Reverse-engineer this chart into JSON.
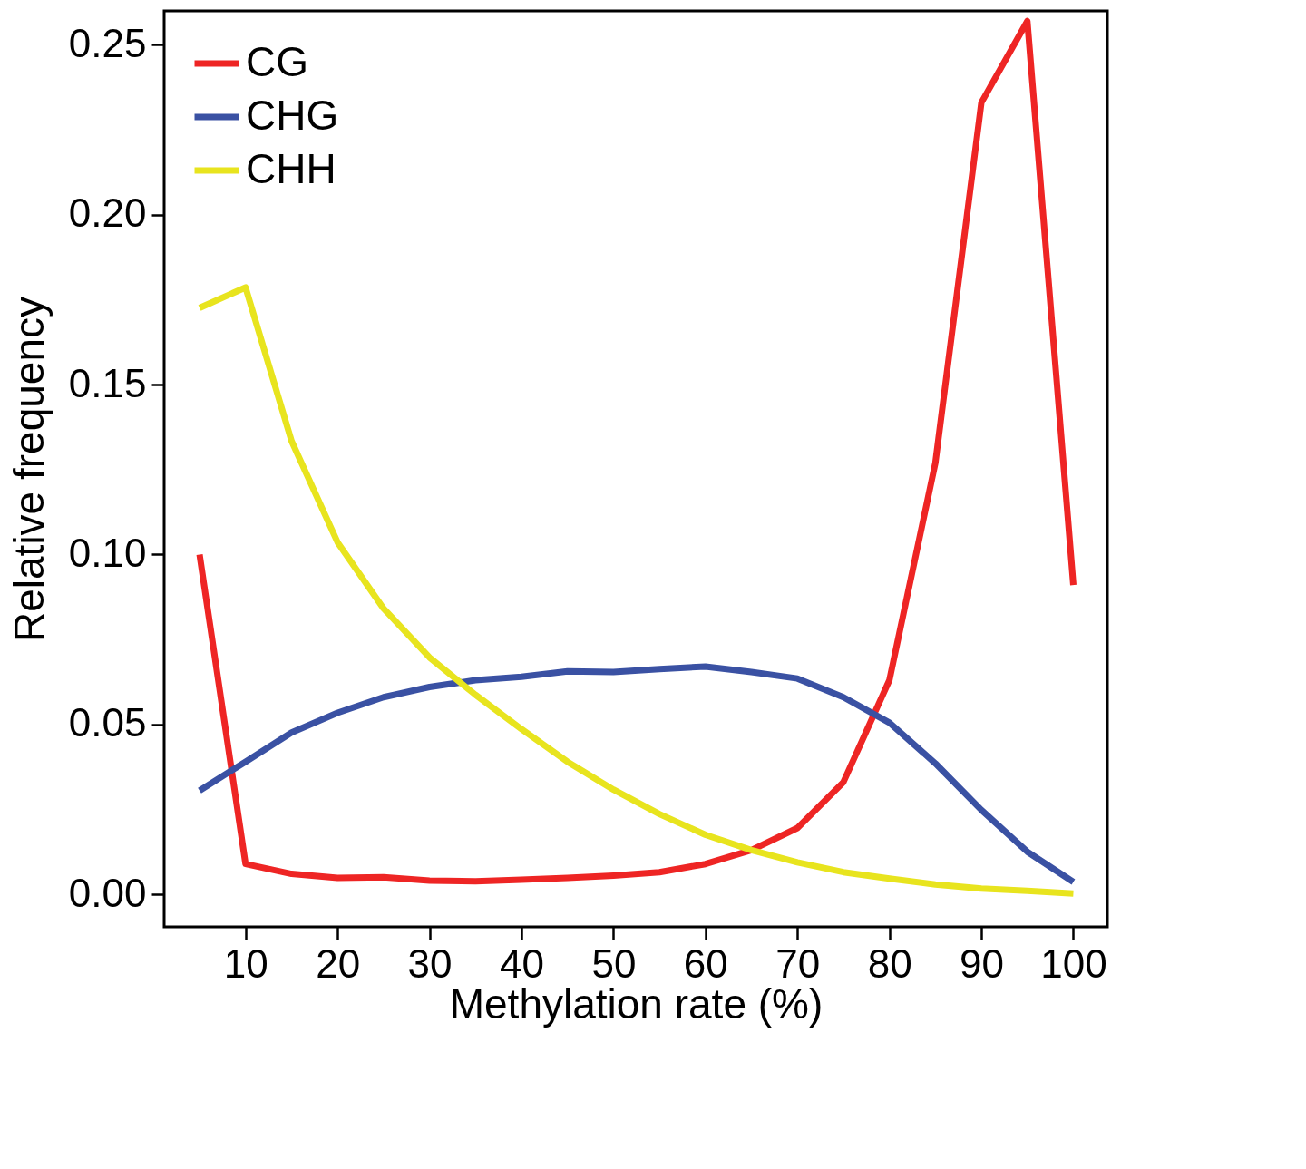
{
  "chart_data": {
    "type": "line",
    "xlabel": "Methylation rate (%)",
    "ylabel": "Relative frequency",
    "x": [
      5,
      10,
      15,
      20,
      25,
      30,
      35,
      40,
      45,
      50,
      55,
      60,
      65,
      70,
      75,
      80,
      85,
      90,
      95,
      100
    ],
    "series": [
      {
        "name": "CG",
        "color": "#ee2524",
        "values": [
          0.1,
          0.0089,
          0.006,
          0.0048,
          0.005,
          0.004,
          0.0038,
          0.0043,
          0.0048,
          0.0055,
          0.0065,
          0.0089,
          0.013,
          0.0195,
          0.033,
          0.063,
          0.127,
          0.233,
          0.257,
          0.091
        ]
      },
      {
        "name": "CHG",
        "color": "#3a51a3",
        "values": [
          0.0305,
          0.039,
          0.0476,
          0.0534,
          0.058,
          0.061,
          0.063,
          0.064,
          0.0656,
          0.0654,
          0.0663,
          0.067,
          0.0654,
          0.0635,
          0.058,
          0.0505,
          0.0385,
          0.0248,
          0.0125,
          0.0036
        ]
      },
      {
        "name": "CHH",
        "color": "#e8e41e",
        "values": [
          0.1726,
          0.1786,
          0.1334,
          0.1036,
          0.0841,
          0.0697,
          0.0587,
          0.0486,
          0.039,
          0.0308,
          0.0236,
          0.0175,
          0.013,
          0.0094,
          0.0065,
          0.0046,
          0.0029,
          0.0017,
          0.001,
          0.0002
        ]
      }
    ],
    "xlim": [
      1.15,
      103.7
    ],
    "ylim": [
      -0.0096,
      0.26
    ],
    "xticks": [
      10,
      20,
      30,
      40,
      50,
      60,
      70,
      80,
      90,
      100
    ],
    "yticks": [
      {
        "value": 0,
        "label": "0.00"
      },
      {
        "value": 0.05,
        "label": "0.05"
      },
      {
        "value": 0.1,
        "label": "0.10"
      },
      {
        "value": 0.15,
        "label": "0.15"
      },
      {
        "value": 0.2,
        "label": "0.20"
      },
      {
        "value": 0.25,
        "label": "0.25"
      }
    ],
    "legend": "top left",
    "grid": false,
    "line_style": "solid",
    "marker": "none"
  }
}
